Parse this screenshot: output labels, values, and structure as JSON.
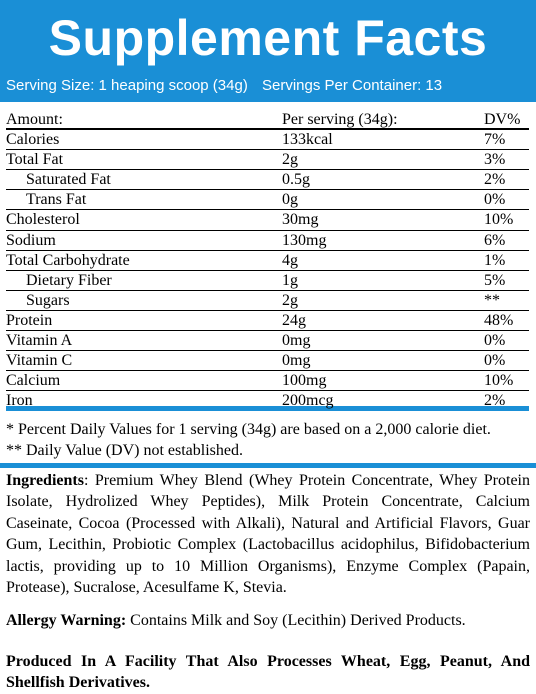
{
  "header": {
    "title": "Supplement Facts",
    "serving_size": "Serving Size: 1 heaping scoop (34g)",
    "servings_per_container": "Servings Per Container: 13",
    "color": "#1a8fd6"
  },
  "table": {
    "columns": [
      "Amount:",
      "Per serving (34g):",
      "DV%"
    ],
    "rows": [
      {
        "name": "Calories",
        "amount": "133kcal",
        "dv": "7%",
        "indent": false
      },
      {
        "name": "Total Fat",
        "amount": "2g",
        "dv": "3%",
        "indent": false
      },
      {
        "name": "Saturated Fat",
        "amount": "0.5g",
        "dv": "2%",
        "indent": true
      },
      {
        "name": "Trans Fat",
        "amount": "0g",
        "dv": "0%",
        "indent": true
      },
      {
        "name": "Cholesterol",
        "amount": "30mg",
        "dv": "10%",
        "indent": false
      },
      {
        "name": "Sodium",
        "amount": "130mg",
        "dv": "6%",
        "indent": false
      },
      {
        "name": "Total Carbohydrate",
        "amount": "4g",
        "dv": "1%",
        "indent": false
      },
      {
        "name": "Dietary Fiber",
        "amount": "1g",
        "dv": "5%",
        "indent": true
      },
      {
        "name": "Sugars",
        "amount": "2g",
        "dv": "**",
        "indent": true
      },
      {
        "name": "Protein",
        "amount": "24g",
        "dv": "48%",
        "indent": false
      },
      {
        "name": "Vitamin A",
        "amount": "0mg",
        "dv": "0%",
        "indent": false
      },
      {
        "name": "Vitamin C",
        "amount": "0mg",
        "dv": "0%",
        "indent": false
      },
      {
        "name": "Calcium",
        "amount": "100mg",
        "dv": "10%",
        "indent": false
      },
      {
        "name": "Iron",
        "amount": "200mcg",
        "dv": "2%",
        "indent": false
      }
    ]
  },
  "notes": {
    "line1": "* Percent Daily Values for 1 serving (34g) are based on a 2,000 calorie diet.",
    "line2": "** Daily Value (DV) not established."
  },
  "ingredients": {
    "label": "Ingredients",
    "text": ": Premium Whey Blend (Whey Protein Concentrate, Whey Protein Isolate, Hydrolized Whey Peptides), Milk Protein Concentrate, Calcium Caseinate, Cocoa (Processed with Alkali), Natural and Artificial Flavors, Guar Gum, Lecithin, Probiotic Complex (Lactobacillus acidophilus, Bifidobacterium lactis, providing up to 10 Million Organisms), Enzyme Complex (Papain, Protease), Sucralose, Acesulfame K, Stevia."
  },
  "allergy": {
    "label": "Allergy Warning:",
    "text": " Contains Milk and Soy (Lecithin) Derived Products."
  },
  "facility": "Produced In A Facility That Also Processes Wheat, Egg, Peanut, And Shellfish Derivatives."
}
